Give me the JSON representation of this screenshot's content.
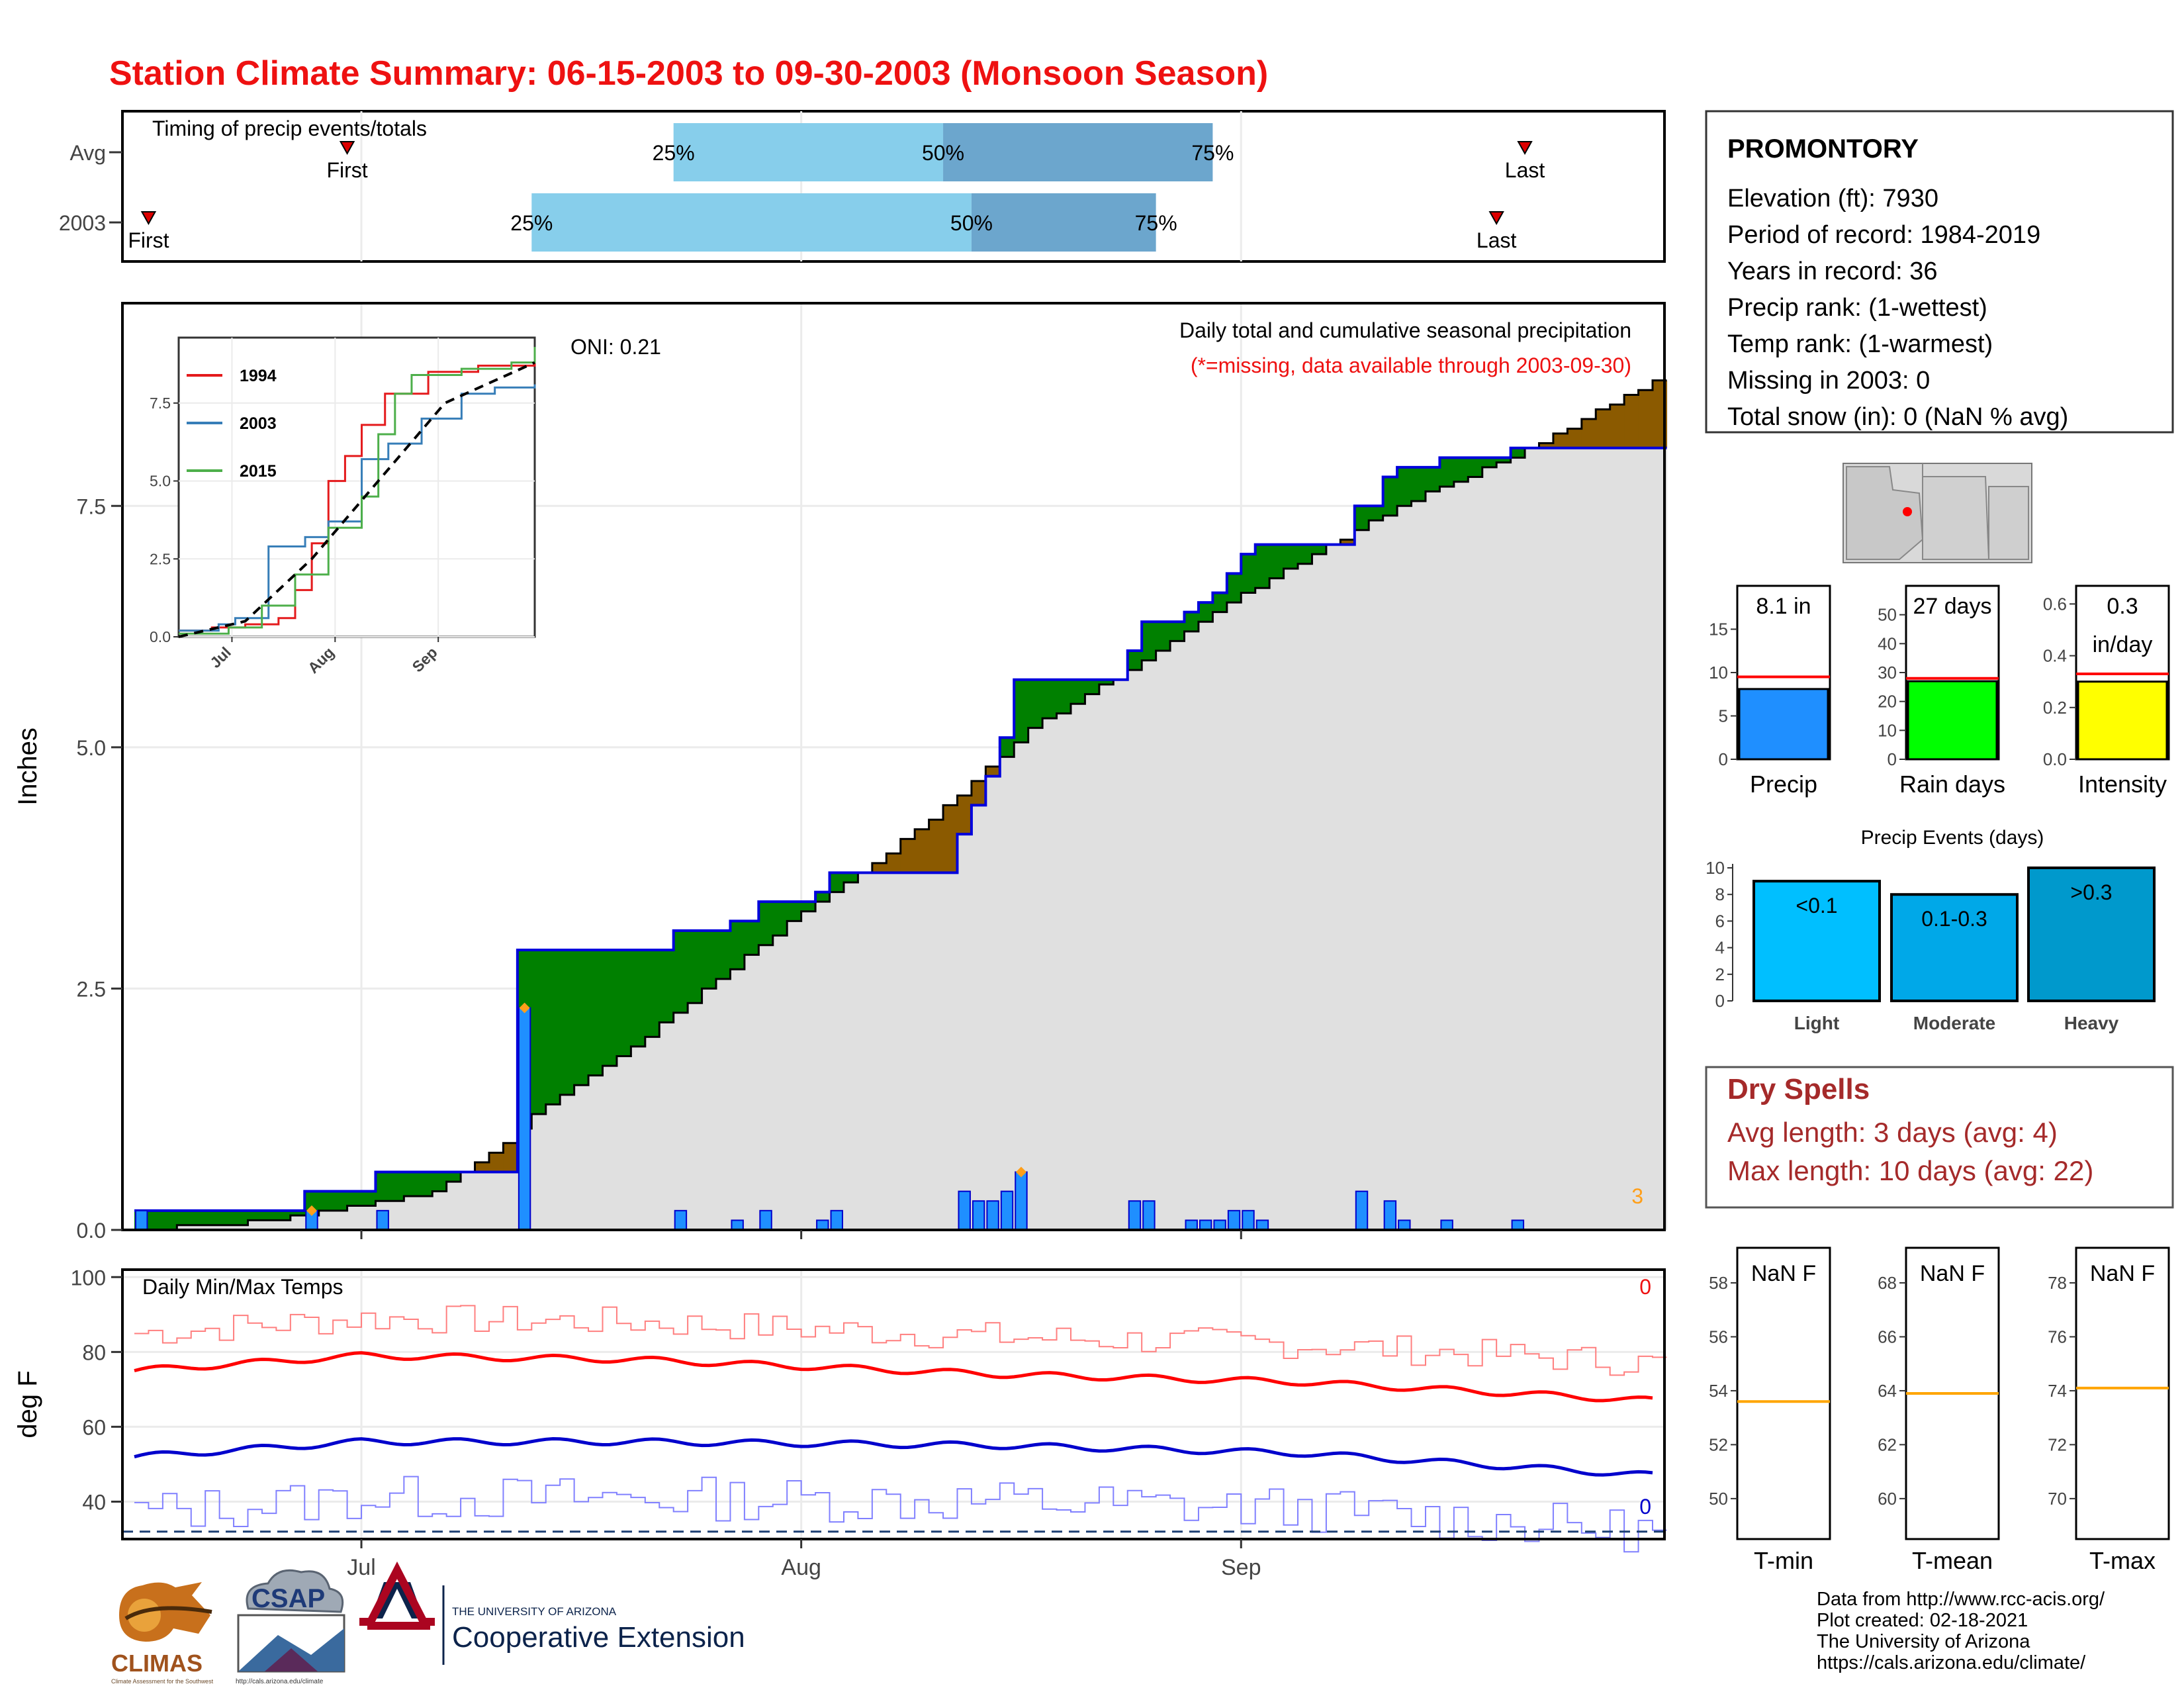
{
  "title": "Station Climate Summary: 06-15-2003 to 09-30-2003 (Monsoon Season)",
  "colors": {
    "title": "#ee1111",
    "station_precip": "#1f8fff",
    "rain_days": "#00ff00",
    "intensity": "#ffff00",
    "avg_line": "#ff0000",
    "above_avg": "#008000",
    "below_avg": "#8b5a00",
    "cumulative_fill": "#e0e0e0",
    "dry_spells": "#a52a2a",
    "timing_q1": "#87ceeb",
    "timing_q2": "#6ca6cd",
    "tmax": "#ff0000",
    "tmin": "#0000cc",
    "temp_ref": "#ffa500"
  },
  "timing": {
    "label": "Timing of precip events/totals",
    "rows": [
      {
        "name": "Avg",
        "first_doy": 15,
        "q25_doy": 38,
        "q50_doy": 57,
        "q75_doy": 76,
        "last_doy": 98,
        "first_label": "First",
        "last_label": "Last",
        "p25": "25%",
        "p50": "50%",
        "p75": "75%"
      },
      {
        "name": "2003",
        "first_doy": 1,
        "q25_doy": 28,
        "q50_doy": 59,
        "q75_doy": 72,
        "last_doy": 96,
        "first_label": "First",
        "last_label": "Last",
        "p25": "25%",
        "p50": "50%",
        "p75": "75%"
      }
    ]
  },
  "precip_panel": {
    "title": "Daily total and cumulative seasonal precipitation",
    "note": "(*=missing, data available through 2003-09-30)",
    "oni": "ONI: 0.21",
    "ylabel": "Inches",
    "y_ticks": [
      "0.0",
      "2.5",
      "5.0",
      "7.5"
    ],
    "corner_count": "3"
  },
  "inset": {
    "y_ticks": [
      "0.0",
      "2.5",
      "5.0",
      "7.5"
    ],
    "x_ticks": [
      "Jul",
      "Aug",
      "Sep"
    ],
    "legend": [
      {
        "name": "1994",
        "color": "#e41a1c"
      },
      {
        "name": "2003",
        "color": "#377eb8"
      },
      {
        "name": "2015",
        "color": "#4daf4a"
      }
    ]
  },
  "temp_panel": {
    "title": "Daily Min/Max Temps",
    "ylabel": "deg F",
    "y_ticks": [
      "40",
      "60",
      "80",
      "100"
    ],
    "x_ticks": [
      "Jul",
      "Aug",
      "Sep"
    ],
    "count_max": "0",
    "count_min": "0"
  },
  "station": {
    "name": "PROMONTORY",
    "lines": [
      "Elevation (ft): 7930",
      "Period of record: 1984-2019",
      "Years in record: 36",
      "Precip rank:  (1-wettest)",
      "Temp rank:  (1-warmest)",
      "Missing in 2003: 0",
      "Total snow (in): 0 (NaN % avg)"
    ]
  },
  "mini_bars": [
    {
      "label": "Precip",
      "value_text": "8.1 in",
      "value": 8.1,
      "avg": 9.5,
      "ymax": 20,
      "ticks": [
        "0",
        "5",
        "10",
        "15"
      ],
      "color": "#1f8fff"
    },
    {
      "label": "Rain days",
      "value_text": "27 days",
      "value": 27,
      "avg": 28,
      "ymax": 60,
      "ticks": [
        "0",
        "10",
        "20",
        "30",
        "40",
        "50"
      ],
      "color": "#00ff00"
    },
    {
      "label": "Intensity",
      "value_text": "0.3",
      "value_text2": "in/day",
      "value": 0.3,
      "avg": 0.33,
      "ymax": 0.67,
      "ticks": [
        "0.0",
        "0.2",
        "0.4",
        "0.6"
      ],
      "color": "#ffff00"
    }
  ],
  "events": {
    "title": "Precip Events (days)",
    "categories": [
      "Light",
      "Moderate",
      "Heavy"
    ],
    "labels": [
      "<0.1",
      "0.1-0.3",
      ">0.3"
    ],
    "values": [
      9,
      8,
      10
    ],
    "colors": [
      "#00bfff",
      "#00a8e8",
      "#0099cc"
    ],
    "ticks": [
      "0",
      "2",
      "4",
      "6",
      "8",
      "10"
    ]
  },
  "dry_spells": {
    "title": "Dry Spells",
    "avg_line": "Avg length: 3 days (avg: 4)",
    "max_line": "Max length: 10 days (avg: 22)"
  },
  "temp_boxes": [
    {
      "label": "T-min",
      "value": "NaN F",
      "ticks": [
        "50",
        "52",
        "54",
        "56",
        "58"
      ],
      "ref": 53.6
    },
    {
      "label": "T-mean",
      "value": "NaN F",
      "ticks": [
        "60",
        "62",
        "64",
        "66",
        "68"
      ],
      "ref": 63.9
    },
    {
      "label": "T-max",
      "value": "NaN F",
      "ticks": [
        "70",
        "72",
        "74",
        "76",
        "78"
      ],
      "ref": 74.1
    }
  ],
  "footer": [
    "Data from http://www.rcc-acis.org/",
    "Plot created: 02-18-2021",
    "The University of Arizona",
    "https://cals.arizona.edu/climate/"
  ],
  "logos": {
    "climas": "CLIMAS",
    "climas_sub": "Climate Assessment for the Southwest",
    "csap": "CSAP",
    "csap_url": "http://cals.arizona.edu/climate",
    "ua_small": "THE UNIVERSITY OF ARIZONA",
    "ua_big": "Cooperative Extension"
  },
  "chart_data": {
    "type": "area",
    "x_range": [
      "2003-06-15",
      "2003-09-30"
    ],
    "ylim": [
      0,
      9.6
    ],
    "xlabel": "",
    "ylabel": "Inches",
    "daily_precip": [
      {
        "date": "2003-06-15",
        "in": 0.2
      },
      {
        "date": "2003-06-27",
        "in": 0.2
      },
      {
        "date": "2003-07-02",
        "in": 0.2
      },
      {
        "date": "2003-07-12",
        "in": 2.3
      },
      {
        "date": "2003-07-23",
        "in": 0.2
      },
      {
        "date": "2003-07-27",
        "in": 0.1
      },
      {
        "date": "2003-07-29",
        "in": 0.2
      },
      {
        "date": "2003-08-02",
        "in": 0.1
      },
      {
        "date": "2003-08-03",
        "in": 0.2
      },
      {
        "date": "2003-08-12",
        "in": 0.4
      },
      {
        "date": "2003-08-13",
        "in": 0.3
      },
      {
        "date": "2003-08-14",
        "in": 0.3
      },
      {
        "date": "2003-08-15",
        "in": 0.4
      },
      {
        "date": "2003-08-16",
        "in": 0.6
      },
      {
        "date": "2003-08-24",
        "in": 0.3
      },
      {
        "date": "2003-08-25",
        "in": 0.3
      },
      {
        "date": "2003-08-28",
        "in": 0.1
      },
      {
        "date": "2003-08-29",
        "in": 0.1
      },
      {
        "date": "2003-08-30",
        "in": 0.1
      },
      {
        "date": "2003-08-31",
        "in": 0.2
      },
      {
        "date": "2003-09-01",
        "in": 0.2
      },
      {
        "date": "2003-09-02",
        "in": 0.1
      },
      {
        "date": "2003-09-09",
        "in": 0.4
      },
      {
        "date": "2003-09-11",
        "in": 0.3
      },
      {
        "date": "2003-09-12",
        "in": 0.1
      },
      {
        "date": "2003-09-15",
        "in": 0.1
      },
      {
        "date": "2003-09-20",
        "in": 0.1
      }
    ],
    "avg_cumulative": [
      {
        "date": "2003-06-15",
        "in": 0.0
      },
      {
        "date": "2003-06-25",
        "in": 0.1
      },
      {
        "date": "2003-07-01",
        "in": 0.25
      },
      {
        "date": "2003-07-06",
        "in": 0.4
      },
      {
        "date": "2003-07-11",
        "in": 0.9
      },
      {
        "date": "2003-07-13",
        "in": 1.2
      },
      {
        "date": "2003-07-20",
        "in": 1.9
      },
      {
        "date": "2003-07-26",
        "in": 2.6
      },
      {
        "date": "2003-08-01",
        "in": 3.3
      },
      {
        "date": "2003-08-06",
        "in": 3.8
      },
      {
        "date": "2003-08-12",
        "in": 4.5
      },
      {
        "date": "2003-08-17",
        "in": 5.2
      },
      {
        "date": "2003-08-24",
        "in": 5.8
      },
      {
        "date": "2003-08-31",
        "in": 6.5
      },
      {
        "date": "2003-09-06",
        "in": 7.0
      },
      {
        "date": "2003-09-12",
        "in": 7.5
      },
      {
        "date": "2003-09-20",
        "in": 8.0
      },
      {
        "date": "2003-09-30",
        "in": 8.8
      }
    ],
    "inset_series": [
      {
        "name": "1994",
        "points": [
          [
            0,
            0.2
          ],
          [
            10,
            0.3
          ],
          [
            20,
            0.4
          ],
          [
            30,
            0.6
          ],
          [
            35,
            1.5
          ],
          [
            40,
            3.0
          ],
          [
            45,
            5.0
          ],
          [
            50,
            5.8
          ],
          [
            55,
            6.8
          ],
          [
            62,
            7.8
          ],
          [
            75,
            8.5
          ],
          [
            90,
            8.7
          ],
          [
            107,
            8.9
          ]
        ]
      },
      {
        "name": "2003",
        "points": [
          [
            0,
            0.2
          ],
          [
            12,
            0.4
          ],
          [
            17,
            0.6
          ],
          [
            27,
            2.9
          ],
          [
            38,
            3.2
          ],
          [
            45,
            3.7
          ],
          [
            55,
            5.7
          ],
          [
            63,
            6.2
          ],
          [
            73,
            7.0
          ],
          [
            85,
            7.8
          ],
          [
            95,
            8.0
          ],
          [
            107,
            8.1
          ]
        ]
      },
      {
        "name": "2015",
        "points": [
          [
            0,
            0.1
          ],
          [
            15,
            0.3
          ],
          [
            25,
            1.0
          ],
          [
            35,
            2.0
          ],
          [
            45,
            3.5
          ],
          [
            55,
            4.5
          ],
          [
            60,
            6.5
          ],
          [
            65,
            7.8
          ],
          [
            70,
            8.4
          ],
          [
            85,
            8.6
          ],
          [
            100,
            8.8
          ],
          [
            107,
            9.3
          ]
        ]
      },
      {
        "name": "avg",
        "points": [
          [
            0,
            0.0
          ],
          [
            20,
            0.5
          ],
          [
            40,
            2.5
          ],
          [
            60,
            5.0
          ],
          [
            80,
            7.5
          ],
          [
            107,
            8.8
          ]
        ]
      }
    ],
    "temperature": {
      "ylim": [
        30,
        102
      ],
      "avg_max": [
        {
          "date": "2003-06-15",
          "f": 75
        },
        {
          "date": "2003-07-01",
          "f": 79
        },
        {
          "date": "2003-07-20",
          "f": 78
        },
        {
          "date": "2003-08-15",
          "f": 74
        },
        {
          "date": "2003-09-05",
          "f": 72
        },
        {
          "date": "2003-09-30",
          "f": 67
        }
      ],
      "avg_min": [
        {
          "date": "2003-06-15",
          "f": 52
        },
        {
          "date": "2003-07-01",
          "f": 56
        },
        {
          "date": "2003-07-20",
          "f": 56
        },
        {
          "date": "2003-08-15",
          "f": 55
        },
        {
          "date": "2003-09-05",
          "f": 53
        },
        {
          "date": "2003-09-30",
          "f": 47
        }
      ],
      "freezing_line_f": 32
    }
  }
}
